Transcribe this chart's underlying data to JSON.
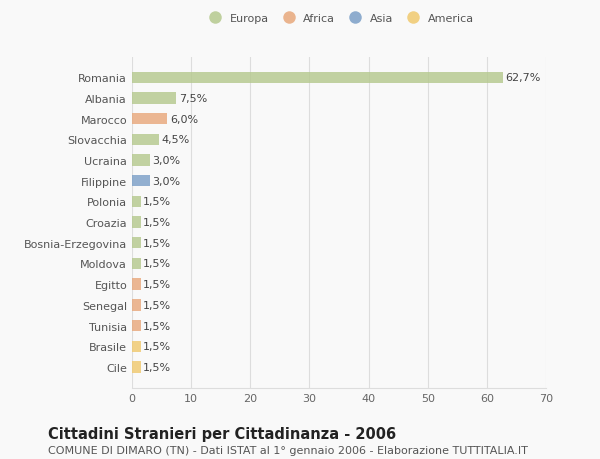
{
  "countries": [
    "Romania",
    "Albania",
    "Marocco",
    "Slovacchia",
    "Ucraina",
    "Filippine",
    "Polonia",
    "Croazia",
    "Bosnia-Erzegovina",
    "Moldova",
    "Egitto",
    "Senegal",
    "Tunisia",
    "Brasile",
    "Cile"
  ],
  "values": [
    62.7,
    7.5,
    6.0,
    4.5,
    3.0,
    3.0,
    1.5,
    1.5,
    1.5,
    1.5,
    1.5,
    1.5,
    1.5,
    1.5,
    1.5
  ],
  "labels": [
    "62,7%",
    "7,5%",
    "6,0%",
    "4,5%",
    "3,0%",
    "3,0%",
    "1,5%",
    "1,5%",
    "1,5%",
    "1,5%",
    "1,5%",
    "1,5%",
    "1,5%",
    "1,5%",
    "1,5%"
  ],
  "colors": [
    "#b5c98e",
    "#b5c98e",
    "#e8a87c",
    "#b5c98e",
    "#b5c98e",
    "#7b9fc7",
    "#b5c98e",
    "#b5c98e",
    "#b5c98e",
    "#b5c98e",
    "#e8a87c",
    "#e8a87c",
    "#e8a87c",
    "#f0c96e",
    "#f0c96e"
  ],
  "legend": [
    {
      "label": "Europa",
      "color": "#b5c98e"
    },
    {
      "label": "Africa",
      "color": "#e8a87c"
    },
    {
      "label": "Asia",
      "color": "#7b9fc7"
    },
    {
      "label": "America",
      "color": "#f0c96e"
    }
  ],
  "xlim": [
    0,
    70
  ],
  "xticks": [
    0,
    10,
    20,
    30,
    40,
    50,
    60,
    70
  ],
  "title": "Cittadini Stranieri per Cittadinanza - 2006",
  "subtitle": "COMUNE DI DIMARO (TN) - Dati ISTAT al 1° gennaio 2006 - Elaborazione TUTTITALIA.IT",
  "background_color": "#f9f9f9",
  "grid_color": "#dddddd",
  "bar_height": 0.55,
  "label_fontsize": 8.0,
  "tick_fontsize": 8.0,
  "title_fontsize": 10.5,
  "subtitle_fontsize": 8.0
}
